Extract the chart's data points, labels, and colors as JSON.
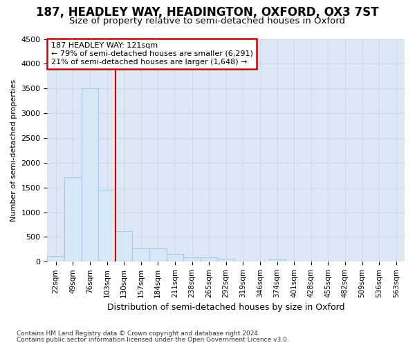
{
  "title": "187, HEADLEY WAY, HEADINGTON, OXFORD, OX3 7ST",
  "subtitle": "Size of property relative to semi-detached houses in Oxford",
  "xlabel": "Distribution of semi-detached houses by size in Oxford",
  "ylabel": "Number of semi-detached properties",
  "footnote1": "Contains HM Land Registry data © Crown copyright and database right 2024.",
  "footnote2": "Contains public sector information licensed under the Open Government Licence v3.0.",
  "annotation_line1": "187 HEADLEY WAY: 121sqm",
  "annotation_line2": "← 79% of semi-detached houses are smaller (6,291)",
  "annotation_line3": "21% of semi-detached houses are larger (1,648) →",
  "bar_labels": [
    "22sqm",
    "49sqm",
    "76sqm",
    "103sqm",
    "130sqm",
    "157sqm",
    "184sqm",
    "211sqm",
    "238sqm",
    "265sqm",
    "292sqm",
    "319sqm",
    "346sqm",
    "374sqm",
    "401sqm",
    "428sqm",
    "455sqm",
    "482sqm",
    "509sqm",
    "536sqm",
    "563sqm"
  ],
  "bar_values": [
    120,
    1700,
    3500,
    1450,
    620,
    275,
    265,
    155,
    95,
    85,
    55,
    10,
    8,
    45,
    4,
    2,
    2,
    1,
    1,
    1,
    1
  ],
  "bar_color": "#d6e8f7",
  "bar_edge_color": "#a8c8e8",
  "vline_color": "#cc0000",
  "vline_pos": 3.5,
  "annotation_box_facecolor": "#ffffff",
  "annotation_box_edgecolor": "#cc0000",
  "grid_color": "#c8d8ec",
  "plot_bg_color": "#dde8f4",
  "fig_bg_color": "#ffffff",
  "ylim": [
    0,
    4500
  ],
  "yticks": [
    0,
    500,
    1000,
    1500,
    2000,
    2500,
    3000,
    3500,
    4000,
    4500
  ],
  "title_fontsize": 12,
  "subtitle_fontsize": 9.5,
  "xlabel_fontsize": 9,
  "ylabel_fontsize": 8,
  "tick_fontsize": 8,
  "xtick_fontsize": 7.5,
  "footnote_fontsize": 6.5,
  "annotation_fontsize": 8
}
